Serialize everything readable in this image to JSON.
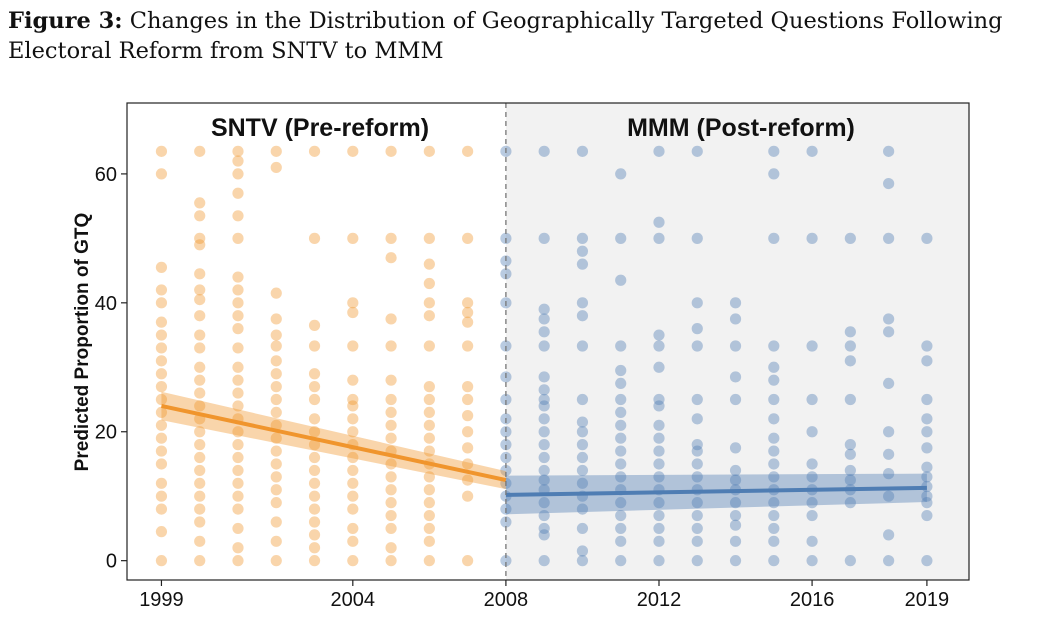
{
  "caption": {
    "prefix": "Figure 3:",
    "text": "Changes in the Distribution of Geographically Targeted Questions Following Electoral Reform from SNTV to MMM"
  },
  "chart_data": {
    "type": "scatter",
    "ylabel": "Predicted Proportion of GTQ",
    "xlabel": "",
    "x_ticks": [
      1999,
      2004,
      2008,
      2012,
      2016,
      2019
    ],
    "y_ticks": [
      0,
      20,
      40,
      60
    ],
    "xlim": [
      1998.1,
      2020.1
    ],
    "ylim": [
      -3.0,
      71.0
    ],
    "grid": false,
    "reform_year": 2008,
    "periods": [
      {
        "label": "SNTV (Pre-reform)",
        "color": "#f0952d",
        "shaded": false
      },
      {
        "label": "MMM (Post-reform)",
        "color": "#4f7db3",
        "shaded": true
      }
    ],
    "colors": {
      "pre": "#f0952d",
      "post": "#4f7db3",
      "post_background": "#f2f2f2",
      "reform_line": "#777777"
    },
    "series": [
      {
        "period": "SNTV (Pre-reform)",
        "points_by_year": {
          "1999": [
            0,
            4.5,
            8,
            10,
            12,
            15,
            17,
            19,
            21,
            23,
            25,
            27,
            29,
            31,
            33,
            35,
            37,
            40,
            42,
            45.5,
            60,
            63.5
          ],
          "2000": [
            0,
            3,
            6,
            8,
            10,
            12,
            14,
            16,
            18,
            20,
            22,
            24,
            26,
            28,
            30,
            33,
            35,
            38,
            40.5,
            42,
            44.5,
            49,
            50,
            53.5,
            55.5,
            63.5
          ],
          "2001": [
            0,
            2,
            5,
            8,
            10,
            12,
            14,
            16,
            18,
            20,
            22,
            24,
            26,
            28,
            30,
            33,
            36,
            38,
            40,
            42,
            44,
            50,
            53.5,
            57,
            60,
            62,
            63.5
          ],
          "2002": [
            0,
            3,
            6,
            9,
            11,
            13,
            15,
            17,
            19,
            21,
            23,
            25,
            27,
            29,
            31,
            33.3,
            35,
            37.5,
            41.5,
            61,
            63.5
          ],
          "2003": [
            0,
            2,
            4,
            6,
            8,
            10,
            12,
            14,
            16,
            18,
            20,
            22,
            25,
            27,
            29,
            33.3,
            36.5,
            50,
            63.5
          ],
          "2004": [
            0,
            3,
            5,
            8,
            10,
            12,
            14,
            16,
            18,
            20,
            22,
            24,
            25,
            28,
            33.3,
            38.5,
            40,
            50,
            63.5
          ],
          "2005": [
            0,
            2,
            5,
            7,
            9,
            11,
            13,
            15,
            17,
            19,
            21,
            23,
            25,
            28,
            33.3,
            37.5,
            47,
            50,
            63.5
          ],
          "2006": [
            0,
            3,
            5,
            7,
            9,
            11,
            13,
            15,
            17,
            19,
            21,
            23,
            25,
            27,
            33.3,
            38,
            40,
            43,
            46,
            50,
            63.5
          ],
          "2007": [
            0,
            10,
            12.5,
            15,
            17.5,
            20,
            22.5,
            25,
            27,
            33.3,
            37,
            38.5,
            40,
            50,
            63.5
          ]
        },
        "trend": {
          "start": [
            1999,
            24.0
          ],
          "end": [
            2008,
            12.5
          ],
          "ci_half_width": [
            2.2,
            1.4
          ]
        }
      },
      {
        "period": "MMM (Post-reform)",
        "points_by_year": {
          "2008": [
            0,
            6,
            8,
            10,
            12,
            14,
            16,
            18,
            20,
            22,
            25,
            28.5,
            33.3,
            40,
            44.5,
            46.5,
            50,
            63.5
          ],
          "2009": [
            0,
            4,
            5,
            7,
            9,
            11,
            12.5,
            14,
            16,
            18,
            20,
            22,
            24,
            25,
            26.5,
            28.5,
            33.3,
            35.5,
            37.5,
            39,
            50,
            63.5
          ],
          "2010": [
            0,
            1.5,
            5,
            8,
            10,
            12,
            14,
            16,
            18,
            20,
            21.5,
            25,
            33.3,
            38,
            40,
            46,
            48,
            50,
            63.5
          ],
          "2011": [
            0,
            3,
            5,
            7,
            9,
            11,
            13,
            15,
            17,
            19,
            21,
            23,
            25,
            27.5,
            29.5,
            33.3,
            43.5,
            50,
            60
          ],
          "2012": [
            0,
            3,
            5,
            7,
            9,
            11,
            13,
            15,
            17,
            19,
            21,
            24,
            25,
            30,
            33.3,
            35,
            50,
            52.5,
            63.5
          ],
          "2013": [
            0,
            3,
            5,
            7,
            9,
            11,
            13,
            15,
            17,
            18,
            22,
            25,
            33.3,
            36,
            40,
            50,
            63.5
          ],
          "2014": [
            0,
            3,
            5.5,
            7,
            9,
            11,
            12.5,
            14,
            17.5,
            25,
            28.5,
            33.3,
            37.5,
            40
          ],
          "2015": [
            0,
            3,
            5,
            7,
            9,
            11,
            13,
            15,
            17,
            19,
            22,
            25,
            28,
            30,
            33.3,
            50,
            60,
            63.5
          ],
          "2016": [
            0,
            3,
            7,
            9,
            11,
            13,
            15,
            20,
            25,
            33.3,
            50,
            63.5
          ],
          "2017": [
            0,
            9,
            11,
            12.5,
            14,
            16.5,
            18,
            25,
            31,
            33.3,
            35.5,
            50
          ],
          "2018": [
            0,
            4,
            10,
            13.5,
            16.5,
            20,
            27.5,
            35.5,
            37.5,
            50,
            58.5,
            63.5
          ],
          "2019": [
            0,
            7,
            9,
            10,
            11.5,
            13,
            14.5,
            17.5,
            20,
            22,
            25,
            31,
            33.3,
            50
          ]
        },
        "trend": {
          "start": [
            2008,
            10.2
          ],
          "end": [
            2019,
            11.3
          ],
          "ci_half_width": [
            3.0,
            2.2
          ]
        }
      }
    ]
  }
}
